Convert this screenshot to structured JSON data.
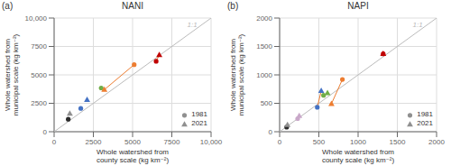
{
  "chart_data": [
    {
      "type": "scatter",
      "title": "NANI",
      "panel_label": "(a)",
      "xlabel": "Whole watershed from\ncounty scale (kg km⁻²)",
      "ylabel": "Whole watershed from\nmunicipal scale (kg km⁻²)",
      "xlim": [
        0,
        10000
      ],
      "ylim": [
        0,
        10000
      ],
      "xticks": [
        0,
        2500,
        5000,
        7500,
        {
          "value": 10000,
          "label": "10,000"
        }
      ],
      "yticks": [
        0,
        2500,
        5000,
        7500,
        {
          "value": 10000,
          "label": "10,000"
        }
      ],
      "grid": true,
      "legend": "lower right",
      "series": [
        {
          "type": "line",
          "color": "#BBBBBB",
          "x": [
            0,
            10000
          ],
          "values": [
            0,
            10000
          ]
        },
        {
          "type": "line",
          "color": "#ED7D31",
          "x": [
            3000,
            3200
          ],
          "values": [
            3850,
            3700
          ]
        },
        {
          "type": "line",
          "color": "#ED7D31",
          "x": [
            5100,
            3200
          ],
          "values": [
            5900,
            3700
          ]
        },
        {
          "type": "line",
          "color": "#ED7D31",
          "x": [
            6500,
            6700
          ],
          "values": [
            6200,
            6750
          ]
        },
        {
          "type": "scatter",
          "name": "1981",
          "marker": "circle",
          "color": "#909090",
          "x": [
            900,
            1700,
            3000,
            5100,
            6500
          ],
          "values": [
            1100,
            2050,
            3850,
            5900,
            6200
          ],
          "colors": [
            "#2B2B2B",
            "#4472C4",
            "#70AD47",
            "#ED7D31",
            "#C00000"
          ]
        },
        {
          "type": "scatter",
          "name": "2021",
          "marker": "triangle",
          "color": "#909090",
          "x": [
            1000,
            2100,
            3200,
            6700
          ],
          "values": [
            1600,
            2800,
            3700,
            6750
          ],
          "colors": [
            "#909090",
            "#4472C4",
            "#ED7D31",
            "#C00000"
          ]
        }
      ],
      "annotations": [
        {
          "text": "1:1",
          "x": 8800,
          "y": 9400,
          "color": "#BBBBBB"
        }
      ]
    },
    {
      "type": "scatter",
      "title": "NAPI",
      "panel_label": "(b)",
      "xlabel": "Whole watershed from\ncounty scale (kg km⁻²)",
      "ylabel": "Whole watershed from\nmunicipal scale (kg km⁻²)",
      "xlim": [
        0,
        2000
      ],
      "ylim": [
        0,
        2000
      ],
      "xticks": [
        0,
        500,
        1000,
        1500,
        2000
      ],
      "yticks": [
        0,
        500,
        1000,
        1500,
        2000
      ],
      "grid": true,
      "legend": "lower right",
      "series": [
        {
          "type": "line",
          "color": "#BBBBBB",
          "x": [
            0,
            2000
          ],
          "values": [
            0,
            2000
          ]
        },
        {
          "type": "line",
          "color": "#ED7D31",
          "x": [
            480,
            530
          ],
          "values": [
            430,
            720
          ]
        },
        {
          "type": "line",
          "color": "#ED7D31",
          "x": [
            560,
            610
          ],
          "values": [
            640,
            680
          ]
        },
        {
          "type": "line",
          "color": "#ED7D31",
          "x": [
            800,
            660
          ],
          "values": [
            920,
            490
          ]
        },
        {
          "type": "scatter",
          "name": "1981",
          "marker": "circle",
          "color": "#909090",
          "x": [
            90,
            230,
            480,
            560,
            800,
            1320
          ],
          "values": [
            80,
            230,
            430,
            640,
            920,
            1370
          ],
          "colors": [
            "#2B2B2B",
            "#C9A8C9",
            "#4472C4",
            "#70AD47",
            "#ED7D31",
            "#C00000"
          ]
        },
        {
          "type": "scatter",
          "name": "2021",
          "marker": "triangle",
          "color": "#909090",
          "x": [
            100,
            250,
            530,
            610,
            660,
            1320
          ],
          "values": [
            120,
            280,
            720,
            680,
            490,
            1370
          ],
          "colors": [
            "#909090",
            "#C9A8C9",
            "#4472C4",
            "#70AD47",
            "#ED7D31",
            "#C00000"
          ]
        }
      ],
      "annotations": [
        {
          "text": "1:1",
          "x": 1760,
          "y": 1880,
          "color": "#BBBBBB"
        }
      ]
    }
  ]
}
